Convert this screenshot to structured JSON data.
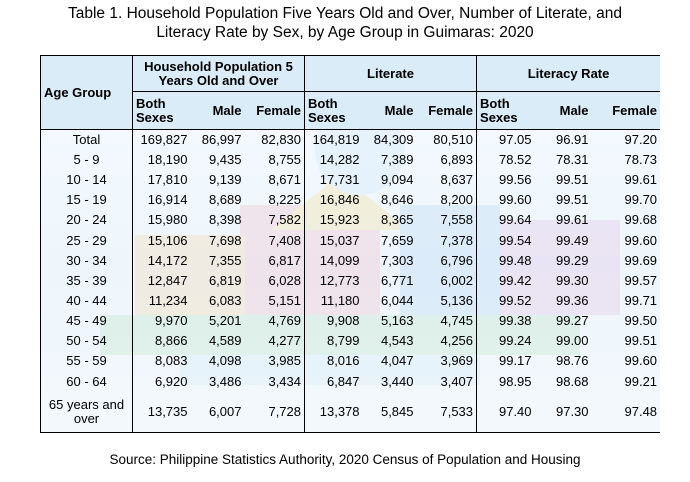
{
  "title_line1": "Table 1. Household Population Five Years Old and Over, Number of Literate, and",
  "title_line2": "Literacy Rate by Sex, by Age Group in Guimaras: 2020",
  "headers": {
    "age_group": "Age Group",
    "group1": "Household Population 5 Years Old and Over",
    "group2": "Literate",
    "group3": "Literacy Rate",
    "both": "Both Sexes",
    "male": "Male",
    "female": "Female"
  },
  "rows": [
    {
      "age": "Total",
      "pop_both": "169,827",
      "pop_male": "86,997",
      "pop_female": "82,830",
      "lit_both": "164,819",
      "lit_male": "84,309",
      "lit_female": "80,510",
      "rate_both": "97.05",
      "rate_male": "96.91",
      "rate_female": "97.20"
    },
    {
      "age": "5 - 9",
      "pop_both": "18,190",
      "pop_male": "9,435",
      "pop_female": "8,755",
      "lit_both": "14,282",
      "lit_male": "7,389",
      "lit_female": "6,893",
      "rate_both": "78.52",
      "rate_male": "78.31",
      "rate_female": "78.73"
    },
    {
      "age": "10 - 14",
      "pop_both": "17,810",
      "pop_male": "9,139",
      "pop_female": "8,671",
      "lit_both": "17,731",
      "lit_male": "9,094",
      "lit_female": "8,637",
      "rate_both": "99.56",
      "rate_male": "99.51",
      "rate_female": "99.61"
    },
    {
      "age": "15 - 19",
      "pop_both": "16,914",
      "pop_male": "8,689",
      "pop_female": "8,225",
      "lit_both": "16,846",
      "lit_male": "8,646",
      "lit_female": "8,200",
      "rate_both": "99.60",
      "rate_male": "99.51",
      "rate_female": "99.70"
    },
    {
      "age": "20 - 24",
      "pop_both": "15,980",
      "pop_male": "8,398",
      "pop_female": "7,582",
      "lit_both": "15,923",
      "lit_male": "8,365",
      "lit_female": "7,558",
      "rate_both": "99.64",
      "rate_male": "99.61",
      "rate_female": "99.68"
    },
    {
      "age": "25 - 29",
      "pop_both": "15,106",
      "pop_male": "7,698",
      "pop_female": "7,408",
      "lit_both": "15,037",
      "lit_male": "7,659",
      "lit_female": "7,378",
      "rate_both": "99.54",
      "rate_male": "99.49",
      "rate_female": "99.60"
    },
    {
      "age": "30 - 34",
      "pop_both": "14,172",
      "pop_male": "7,355",
      "pop_female": "6,817",
      "lit_both": "14,099",
      "lit_male": "7,303",
      "lit_female": "6,796",
      "rate_both": "99.48",
      "rate_male": "99.29",
      "rate_female": "99.69"
    },
    {
      "age": "35 - 39",
      "pop_both": "12,847",
      "pop_male": "6,819",
      "pop_female": "6,028",
      "lit_both": "12,773",
      "lit_male": "6,771",
      "lit_female": "6,002",
      "rate_both": "99.42",
      "rate_male": "99.30",
      "rate_female": "99.57"
    },
    {
      "age": "40 - 44",
      "pop_both": "11,234",
      "pop_male": "6,083",
      "pop_female": "5,151",
      "lit_both": "11,180",
      "lit_male": "6,044",
      "lit_female": "5,136",
      "rate_both": "99.52",
      "rate_male": "99.36",
      "rate_female": "99.71"
    },
    {
      "age": "45 - 49",
      "pop_both": "9,970",
      "pop_male": "5,201",
      "pop_female": "4,769",
      "lit_both": "9,908",
      "lit_male": "5,163",
      "lit_female": "4,745",
      "rate_both": "99.38",
      "rate_male": "99.27",
      "rate_female": "99.50"
    },
    {
      "age": "50 - 54",
      "pop_both": "8,866",
      "pop_male": "4,589",
      "pop_female": "4,277",
      "lit_both": "8,799",
      "lit_male": "4,543",
      "lit_female": "4,256",
      "rate_both": "99.24",
      "rate_male": "99.00",
      "rate_female": "99.51"
    },
    {
      "age": "55 - 59",
      "pop_both": "8,083",
      "pop_male": "4,098",
      "pop_female": "3,985",
      "lit_both": "8,016",
      "lit_male": "4,047",
      "lit_female": "3,969",
      "rate_both": "99.17",
      "rate_male": "98.76",
      "rate_female": "99.60"
    },
    {
      "age": "60 - 64",
      "pop_both": "6,920",
      "pop_male": "3,486",
      "pop_female": "3,434",
      "lit_both": "6,847",
      "lit_male": "3,440",
      "lit_female": "3,407",
      "rate_both": "98.95",
      "rate_male": "98.68",
      "rate_female": "99.21"
    },
    {
      "age": "65 years and over",
      "pop_both": "13,735",
      "pop_male": "6,007",
      "pop_female": "7,728",
      "lit_both": "13,378",
      "lit_male": "5,845",
      "lit_female": "7,533",
      "rate_both": "97.40",
      "rate_male": "97.30",
      "rate_female": "97.48"
    }
  ],
  "source": "Source: Philippine Statistics Authority, 2020 Census of Population and Housing"
}
